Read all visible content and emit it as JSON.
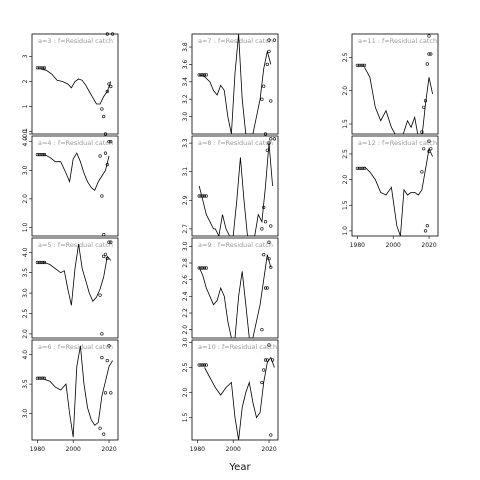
{
  "figure": {
    "x_axis_title": "Year"
  },
  "chart_data": [
    {
      "type": "line",
      "panel": "a=3",
      "title": "a=3 : f=Residual catch",
      "xlim": [
        1977,
        2025
      ],
      "ylim": [
        -0.1,
        3.9
      ],
      "yticks": [
        -0.1,
        0,
        1,
        2,
        3
      ],
      "ytick_labels": [
        "-0.1",
        "0",
        "1",
        "2",
        "3"
      ],
      "xticks": [],
      "xtick_labels": [],
      "line": {
        "x": [
          1982,
          1985,
          1988,
          1991,
          1994,
          1997,
          1999,
          2001,
          2003,
          2005,
          2007,
          2009,
          2011,
          2013,
          2015,
          2017,
          2019,
          2021
        ],
        "y": [
          2.5,
          2.45,
          2.3,
          2.05,
          2.0,
          1.9,
          1.75,
          2.0,
          2.1,
          2.05,
          1.85,
          1.6,
          1.35,
          1.1,
          1.1,
          1.4,
          1.6,
          2.0
        ]
      },
      "points": {
        "x": [
          1980,
          1981,
          1982,
          1983,
          1984,
          2016,
          2017,
          2018,
          2019,
          2020,
          2021
        ],
        "y": [
          2.55,
          2.55,
          2.55,
          2.55,
          2.55,
          0.9,
          0.6,
          -0.1,
          1.6,
          1.9,
          1.8
        ]
      },
      "top_points": {
        "x": [
          2019,
          2022
        ],
        "y": [
          3.9,
          3.9
        ]
      }
    },
    {
      "type": "line",
      "panel": "a=7",
      "title": "a=7 : f=Residual catch",
      "xlim": [
        1977,
        2025
      ],
      "ylim": [
        2.8,
        3.95
      ],
      "yticks": [
        3.0,
        3.2,
        3.4,
        3.6,
        3.8
      ],
      "ytick_labels": [
        "3.0",
        "3.2",
        "3.4",
        "3.6",
        "3.8"
      ],
      "xticks": [],
      "xtick_labels": [],
      "line": {
        "x": [
          1981,
          1984,
          1987,
          1989,
          1991,
          1993,
          1995,
          1997,
          1999,
          2001,
          2003,
          2005,
          2007,
          2009,
          2011,
          2013,
          2015,
          2017,
          2019,
          2021
        ],
        "y": [
          3.48,
          3.46,
          3.4,
          3.3,
          3.25,
          3.36,
          3.3,
          3.0,
          2.8,
          3.5,
          3.95,
          3.2,
          2.8,
          2.8,
          2.8,
          3.0,
          3.2,
          3.55,
          3.75,
          3.6
        ]
      },
      "points": {
        "x": [
          1981,
          1982,
          1983,
          1984,
          1985,
          2016,
          2017,
          2018,
          2019,
          2020,
          2021
        ],
        "y": [
          3.48,
          3.48,
          3.48,
          3.48,
          3.48,
          3.2,
          3.35,
          2.8,
          3.6,
          3.75,
          3.18
        ]
      },
      "top_points": {
        "x": [
          2020,
          2023
        ],
        "y": [
          3.88,
          3.88
        ]
      }
    },
    {
      "type": "line",
      "panel": "a=11",
      "title": "a=11 : f=Residual catch",
      "xlim": [
        1977,
        2025
      ],
      "ylim": [
        1.35,
        2.85
      ],
      "yticks": [
        1.5,
        2.0,
        2.5
      ],
      "ytick_labels": [
        "1.5",
        "2.0",
        "2.5"
      ],
      "xticks": [],
      "xtick_labels": [],
      "line": {
        "x": [
          1984,
          1987,
          1990,
          1993,
          1996,
          1999,
          2002,
          2005,
          2008,
          2010,
          2012,
          2014,
          2016,
          2018,
          2020,
          2022
        ],
        "y": [
          2.35,
          2.2,
          1.75,
          1.55,
          1.7,
          1.45,
          1.3,
          1.3,
          1.55,
          1.45,
          1.6,
          1.3,
          1.3,
          1.8,
          2.2,
          1.95
        ]
      },
      "points": {
        "x": [
          1980,
          1981,
          1982,
          1983,
          1984,
          2016,
          2017,
          2018,
          2019,
          2020,
          2021
        ],
        "y": [
          2.38,
          2.38,
          2.38,
          2.38,
          2.38,
          1.38,
          1.75,
          1.85,
          2.4,
          2.55,
          2.55
        ]
      },
      "top_points": {
        "x": [
          2020
        ],
        "y": [
          2.82
        ]
      }
    },
    {
      "type": "line",
      "panel": "a=4",
      "title": "a=4 : f=Residual catch",
      "xlim": [
        1977,
        2025
      ],
      "ylim": [
        0.7,
        4.2
      ],
      "yticks": [
        1.0,
        2.0,
        3.0,
        4.0
      ],
      "ytick_labels": [
        "1.0",
        "2.0",
        "3.0",
        "4.0"
      ],
      "xticks": [],
      "xtick_labels": [],
      "line": {
        "x": [
          1984,
          1987,
          1990,
          1993,
          1996,
          1998,
          2000,
          2002,
          2004,
          2006,
          2008,
          2010,
          2012,
          2014,
          2016,
          2018,
          2020
        ],
        "y": [
          3.55,
          3.45,
          3.3,
          3.3,
          2.9,
          2.6,
          3.4,
          3.6,
          3.3,
          2.9,
          2.6,
          2.4,
          2.3,
          2.6,
          2.8,
          3.0,
          3.5
        ]
      },
      "points": {
        "x": [
          1980,
          1981,
          1982,
          1983,
          1984,
          2015,
          2016,
          2017,
          2018,
          2019,
          2020
        ],
        "y": [
          3.55,
          3.55,
          3.55,
          3.55,
          3.55,
          3.5,
          2.1,
          0.75,
          3.6,
          3.2,
          4.0
        ]
      },
      "top_points": {
        "x": [
          2021
        ],
        "y": [
          4.0
        ]
      }
    },
    {
      "type": "line",
      "panel": "a=8",
      "title": "a=8 : f=Residual catch",
      "xlim": [
        1977,
        2025
      ],
      "ylim": [
        2.65,
        3.35
      ],
      "yticks": [
        2.7,
        2.9,
        3.1,
        3.3
      ],
      "ytick_labels": [
        "2.7",
        "2.9",
        "3.1",
        "3.3"
      ],
      "xticks": [],
      "xtick_labels": [],
      "line": {
        "x": [
          1981,
          1983,
          1985,
          1987,
          1989,
          1990,
          1992,
          1994,
          1996,
          1998,
          2000,
          2002,
          2004,
          2006,
          2008,
          2010,
          2012,
          2014,
          2016,
          2018,
          2020,
          2022
        ],
        "y": [
          3.0,
          2.9,
          2.8,
          2.75,
          2.7,
          2.7,
          2.65,
          2.8,
          2.7,
          2.65,
          2.65,
          2.9,
          3.2,
          2.9,
          2.65,
          2.65,
          2.65,
          2.8,
          2.75,
          3.0,
          3.3,
          3.0
        ]
      },
      "points": {
        "x": [
          1981,
          1982,
          1983,
          1984,
          1985,
          2016,
          2017,
          2018,
          2019,
          2020,
          2021
        ],
        "y": [
          2.93,
          2.93,
          2.93,
          2.93,
          2.93,
          2.7,
          2.85,
          2.75,
          3.25,
          3.3,
          2.72
        ]
      },
      "top_points": {
        "x": [
          2021,
          2023
        ],
        "y": [
          3.33,
          3.33
        ]
      }
    },
    {
      "type": "line",
      "panel": "a=12",
      "title": "a=12 : f=Residual catch",
      "xlim": [
        1977,
        2025
      ],
      "ylim": [
        0.9,
        2.85
      ],
      "yticks": [
        1.0,
        1.5,
        2.0,
        2.5
      ],
      "ytick_labels": [
        "1.0",
        "1.5",
        "2.0",
        "2.5"
      ],
      "xticks": [
        1980,
        2000,
        2020
      ],
      "xtick_labels": [
        "1980",
        "2000",
        "2020"
      ],
      "line": {
        "x": [
          1984,
          1987,
          1990,
          1993,
          1996,
          1999,
          2002,
          2004,
          2006,
          2008,
          2010,
          2012,
          2014,
          2016,
          2018,
          2020,
          2022
        ],
        "y": [
          2.25,
          2.15,
          2.0,
          1.75,
          1.7,
          1.85,
          1.1,
          0.9,
          1.8,
          1.7,
          1.75,
          1.75,
          1.7,
          1.8,
          2.2,
          2.6,
          2.45
        ]
      },
      "points": {
        "x": [
          1980,
          1981,
          1982,
          1983,
          1984,
          2016,
          2017,
          2018,
          2019,
          2020,
          2021
        ],
        "y": [
          2.22,
          2.22,
          2.22,
          2.22,
          2.22,
          2.15,
          2.6,
          1.0,
          1.1,
          2.55,
          2.6
        ]
      },
      "top_points": {
        "x": [
          2020
        ],
        "y": [
          2.75
        ]
      }
    },
    {
      "type": "line",
      "panel": "a=5",
      "title": "a=5 : f=Residual catch",
      "xlim": [
        1977,
        2025
      ],
      "ylim": [
        1.9,
        4.35
      ],
      "yticks": [
        2.0,
        2.5,
        3.0,
        3.5,
        4.0
      ],
      "ytick_labels": [
        "2.0",
        "2.5",
        "3.0",
        "3.5",
        "4.0"
      ],
      "xticks": [],
      "xtick_labels": [],
      "line": {
        "x": [
          1984,
          1987,
          1990,
          1993,
          1995,
          1997,
          1999,
          2001,
          2003,
          2005,
          2007,
          2009,
          2011,
          2013,
          2015,
          2017,
          2019,
          2021
        ],
        "y": [
          3.75,
          3.7,
          3.6,
          3.5,
          3.55,
          3.1,
          2.7,
          3.6,
          4.2,
          3.6,
          3.3,
          3.0,
          2.8,
          2.9,
          3.1,
          3.4,
          3.9,
          3.8
        ]
      },
      "points": {
        "x": [
          1980,
          1981,
          1982,
          1983,
          1984,
          2015,
          2016,
          2017,
          2018,
          2019,
          2020
        ],
        "y": [
          3.75,
          3.75,
          3.75,
          3.75,
          3.75,
          2.95,
          2.0,
          3.9,
          3.95,
          3.85,
          4.25
        ]
      },
      "top_points": {
        "x": [
          2021
        ],
        "y": [
          4.25
        ]
      }
    },
    {
      "type": "line",
      "panel": "a=9",
      "title": "a=9 : f=Residual catch",
      "xlim": [
        1977,
        2025
      ],
      "ylim": [
        1.9,
        3.1
      ],
      "yticks": [
        2.0,
        2.2,
        2.4,
        2.6,
        2.8,
        3.0
      ],
      "ytick_labels": [
        "2.0",
        "2.2",
        "2.4",
        "2.6",
        "2.8",
        "3.0"
      ],
      "xticks": [],
      "xtick_labels": [],
      "line": {
        "x": [
          1981,
          1983,
          1985,
          1987,
          1989,
          1991,
          1993,
          1995,
          1997,
          1999,
          2001,
          2003,
          2005,
          2007,
          2009,
          2011,
          2013,
          2015,
          2017,
          2019,
          2021
        ],
        "y": [
          2.75,
          2.65,
          2.5,
          2.4,
          2.3,
          2.35,
          2.5,
          2.4,
          2.1,
          1.9,
          1.9,
          2.4,
          2.7,
          2.3,
          1.9,
          1.9,
          2.1,
          2.3,
          2.6,
          2.9,
          2.75
        ]
      },
      "points": {
        "x": [
          1981,
          1982,
          1983,
          1984,
          1985,
          2016,
          2017,
          2018,
          2019,
          2020,
          2021
        ],
        "y": [
          2.74,
          2.74,
          2.74,
          2.74,
          2.74,
          2.0,
          2.9,
          2.5,
          2.5,
          2.85,
          2.75
        ]
      },
      "top_points": {
        "x": [
          2020
        ],
        "y": [
          3.05
        ]
      }
    },
    {
      "type": "line",
      "panel": "a=6",
      "title": "a=6 : f=Residual catch",
      "xlim": [
        1977,
        2025
      ],
      "ylim": [
        2.55,
        4.25
      ],
      "yticks": [
        3.0,
        3.5,
        4.0
      ],
      "ytick_labels": [
        "3.0",
        "3.5",
        "4.0"
      ],
      "xticks": [
        1980,
        2000,
        2020
      ],
      "xtick_labels": [
        "1980",
        "2000",
        "2020"
      ],
      "line": {
        "x": [
          1984,
          1987,
          1990,
          1993,
          1996,
          1998,
          2000,
          2002,
          2004,
          2006,
          2008,
          2010,
          2012,
          2014,
          2016,
          2018,
          2020,
          2022
        ],
        "y": [
          3.58,
          3.55,
          3.45,
          3.4,
          3.5,
          3.0,
          2.6,
          3.8,
          4.15,
          3.5,
          3.1,
          2.9,
          2.8,
          2.85,
          3.3,
          3.55,
          3.8,
          3.9
        ]
      },
      "points": {
        "x": [
          1980,
          1981,
          1982,
          1983,
          1984,
          2015,
          2016,
          2017,
          2018,
          2019,
          2020,
          2021
        ],
        "y": [
          3.6,
          3.6,
          3.6,
          3.6,
          3.6,
          2.75,
          3.95,
          2.65,
          3.35,
          3.9,
          4.15,
          3.35
        ]
      },
      "top_points": {
        "x": [],
        "y": []
      }
    },
    {
      "type": "line",
      "panel": "a=10",
      "title": "a=10 : f=Residual catch",
      "xlim": [
        1977,
        2025
      ],
      "ylim": [
        1.05,
        3.05
      ],
      "yticks": [
        1.5,
        2.0,
        2.5,
        3.0
      ],
      "ytick_labels": [
        "1.5",
        "2.0",
        "2.5",
        "3.0"
      ],
      "xticks": [
        1980,
        2000,
        2020
      ],
      "xtick_labels": [
        "1980",
        "2000",
        "2020"
      ],
      "line": {
        "x": [
          1984,
          1987,
          1990,
          1993,
          1996,
          1999,
          2001,
          2003,
          2005,
          2007,
          2009,
          2011,
          2013,
          2015,
          2017,
          2019,
          2021,
          2023
        ],
        "y": [
          2.5,
          2.3,
          2.1,
          1.95,
          2.1,
          2.2,
          1.5,
          1.05,
          1.7,
          2.0,
          2.2,
          1.8,
          1.5,
          1.6,
          2.2,
          2.6,
          2.7,
          2.5
        ]
      },
      "points": {
        "x": [
          1981,
          1982,
          1983,
          1984,
          1985,
          2016,
          2017,
          2018,
          2019,
          2020,
          2021
        ],
        "y": [
          2.55,
          2.55,
          2.55,
          2.55,
          2.55,
          2.2,
          2.45,
          2.65,
          2.65,
          2.95,
          1.15
        ]
      },
      "top_points": {
        "x": [
          2022
        ],
        "y": [
          2.65
        ]
      }
    }
  ]
}
